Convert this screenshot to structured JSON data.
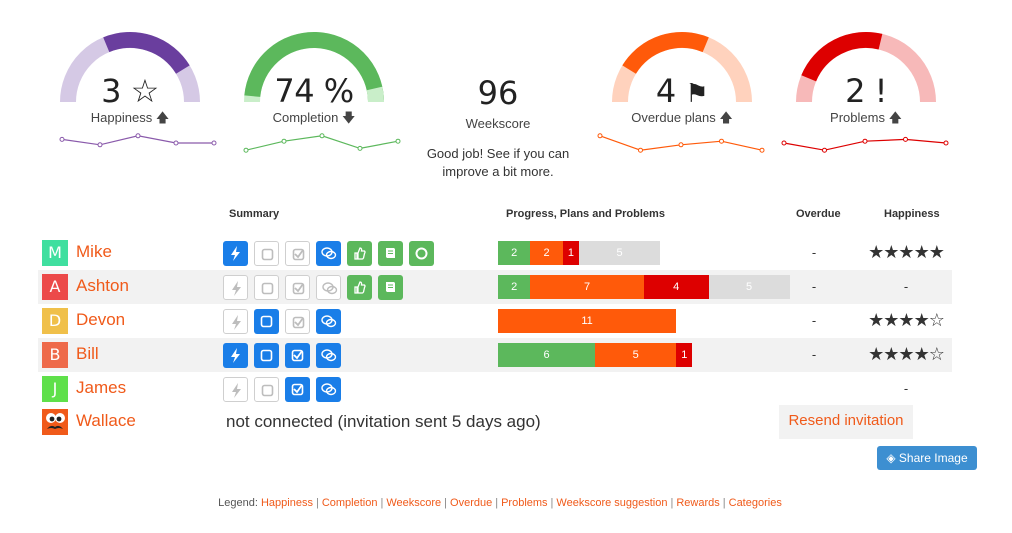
{
  "gauges": [
    {
      "id": "happiness",
      "value": "3",
      "label": "Happiness",
      "trend": "up",
      "color": "#6a3e9e",
      "light": "#d5c9e5",
      "level": 0.6,
      "spark_color": "#8a5aab",
      "spark": [
        0.7,
        0.4,
        0.9,
        0.5,
        0.5
      ]
    },
    {
      "id": "completion",
      "value": "74 %",
      "label": "Completion",
      "trend": "down",
      "color": "#5cb85c",
      "light": "#c9eec9",
      "level": 0.74,
      "spark_color": "#5cb85c",
      "spark": [
        0.1,
        0.6,
        0.9,
        0.2,
        0.6
      ]
    },
    {
      "id": "overdue",
      "value": "4",
      "label": "Overdue plans",
      "trend": "up",
      "color": "#ff5a0a",
      "light": "#ffd2bd",
      "level": 0.4,
      "spark_color": "#ff5a0a",
      "spark": [
        0.9,
        0.1,
        0.4,
        0.6,
        0.1
      ]
    },
    {
      "id": "problems",
      "value": "2 !",
      "label": "Problems",
      "trend": "up",
      "color": "#dd0000",
      "light": "#f7b9b9",
      "level": 0.35,
      "spark_color": "#dd0000",
      "spark": [
        0.5,
        0.1,
        0.6,
        0.7,
        0.5
      ]
    }
  ],
  "weekscore": {
    "value": "96",
    "label": "Weekscore",
    "message": "Good job! See if you can improve a bit more."
  },
  "columns": {
    "summary": "Summary",
    "progress": "Progress, Plans and Problems",
    "overdue": "Overdue",
    "happiness": "Happiness"
  },
  "colors": {
    "progress": "#5cb85c",
    "plans": "#ff5a0a",
    "problems": "#dd0000",
    "remaining": "#dcdcdc",
    "link": "#f05a1a"
  },
  "users": [
    {
      "initial": "M",
      "name": "Mike",
      "avatar_color": "#3fdf9f",
      "overdue": "-",
      "happiness": "★★★★★",
      "stars": 5,
      "icons": [
        "bolt-blue",
        "box-empty",
        "check-empty",
        "chat-blue",
        "thumb-green",
        "book-green",
        "circle-green"
      ],
      "bar": [
        {
          "kind": "progress",
          "value": "2"
        },
        {
          "kind": "plans",
          "value": "2"
        },
        {
          "kind": "problems",
          "value": "1"
        },
        {
          "kind": "remaining",
          "value": "5"
        }
      ]
    },
    {
      "initial": "A",
      "name": "Ashton",
      "avatar_color": "#ec4a4a",
      "overdue": "-",
      "happiness": "-",
      "stars": 0,
      "icons": [
        "bolt-empty",
        "box-empty",
        "check-empty",
        "chat-empty",
        "thumb-green",
        "book-green"
      ],
      "bar": [
        {
          "kind": "progress",
          "value": "2"
        },
        {
          "kind": "plans",
          "value": "7"
        },
        {
          "kind": "problems",
          "value": "4"
        },
        {
          "kind": "remaining",
          "value": "5"
        }
      ]
    },
    {
      "initial": "D",
      "name": "Devon",
      "avatar_color": "#f0c04a",
      "overdue": "-",
      "happiness": "★★★★☆",
      "stars": 4,
      "icons": [
        "bolt-empty",
        "box-blue",
        "check-empty",
        "chat-blue"
      ],
      "bar": [
        {
          "kind": "plans",
          "value": "11"
        }
      ]
    },
    {
      "initial": "B",
      "name": "Bill",
      "avatar_color": "#ee6a4a",
      "overdue": "-",
      "happiness": "★★★★☆",
      "stars": 4,
      "icons": [
        "bolt-blue",
        "box-blue",
        "check-blue",
        "chat-blue"
      ],
      "bar": [
        {
          "kind": "progress",
          "value": "6"
        },
        {
          "kind": "plans",
          "value": "5"
        },
        {
          "kind": "problems",
          "value": "1"
        }
      ]
    },
    {
      "initial": "J",
      "name": "James",
      "avatar_color": "#5fe04a",
      "overdue": "",
      "happiness": "-",
      "stars": 0,
      "icons": [
        "bolt-empty",
        "box-empty",
        "check-blue",
        "chat-blue"
      ],
      "bar": []
    }
  ],
  "pending_user": {
    "name": "Wallace",
    "status": "not connected (invitation sent 5 days ago)",
    "action": "Resend invitation"
  },
  "share_button": "Share Image",
  "legend": {
    "prefix": "Legend:",
    "links": [
      "Happiness",
      "Completion",
      "Weekscore",
      "Overdue",
      "Problems",
      "Weekscore suggestion",
      "Rewards",
      "Categories"
    ]
  }
}
